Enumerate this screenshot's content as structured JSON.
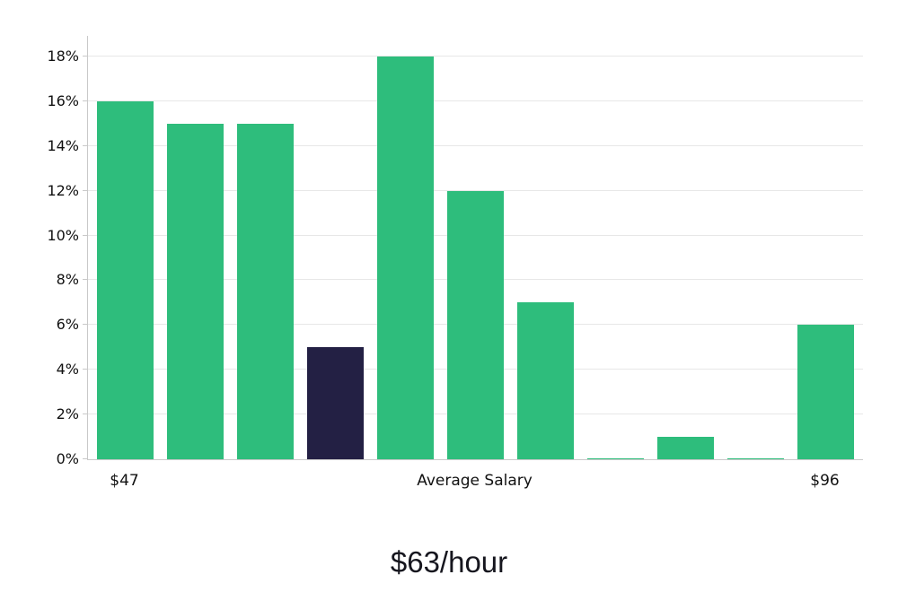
{
  "chart_data": {
    "type": "bar",
    "title": "$63/hour",
    "ylim": [
      0,
      18
    ],
    "grid": true,
    "legend": "none",
    "colors": {
      "bar_default": "#2ebd7c",
      "bar_highlight": "#232044",
      "gridline": "#e7e7e7",
      "axis_line": "#c9c9c9",
      "text": "#111111"
    },
    "bars": [
      {
        "value": 16,
        "highlight": false
      },
      {
        "value": 15,
        "highlight": false
      },
      {
        "value": 15,
        "highlight": false
      },
      {
        "value": 5,
        "highlight": true
      },
      {
        "value": 18,
        "highlight": false
      },
      {
        "value": 12,
        "highlight": false
      },
      {
        "value": 7,
        "highlight": false
      },
      {
        "value": 0.05,
        "highlight": false
      },
      {
        "value": 1,
        "highlight": false
      },
      {
        "value": 0.05,
        "highlight": false
      },
      {
        "value": 6,
        "highlight": false
      }
    ],
    "yticks": [
      {
        "value": 0,
        "label": "0%"
      },
      {
        "value": 2,
        "label": "2%"
      },
      {
        "value": 4,
        "label": "4%"
      },
      {
        "value": 6,
        "label": "6%"
      },
      {
        "value": 8,
        "label": "8%"
      },
      {
        "value": 10,
        "label": "10%"
      },
      {
        "value": 12,
        "label": "12%"
      },
      {
        "value": 14,
        "label": "14%"
      },
      {
        "value": 16,
        "label": "16%"
      },
      {
        "value": 18,
        "label": "18%"
      }
    ],
    "xticks": [
      {
        "bar_index": 0,
        "label": "$47"
      },
      {
        "bar_index": 5,
        "label": "Average Salary"
      },
      {
        "bar_index": 10,
        "label": "$96"
      }
    ]
  }
}
